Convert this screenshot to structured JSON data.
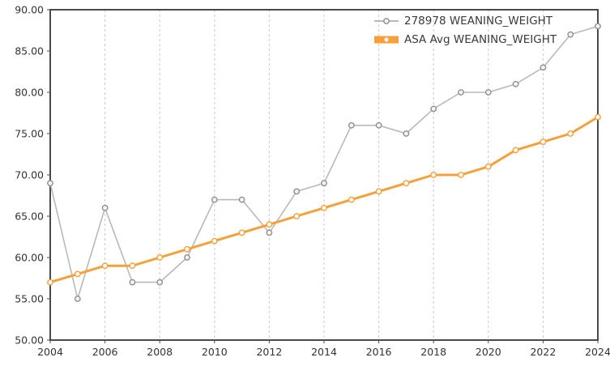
{
  "chart_data": {
    "type": "line",
    "title": "",
    "xlabel": "",
    "ylabel": "",
    "x": [
      2004,
      2005,
      2006,
      2007,
      2008,
      2009,
      2010,
      2011,
      2012,
      2013,
      2014,
      2015,
      2016,
      2017,
      2018,
      2019,
      2020,
      2021,
      2022,
      2023,
      2024
    ],
    "series": [
      {
        "name": "278978 WEANING_WEIGHT",
        "color": "#b9b9b9",
        "marker_stroke": "#8f8f8f",
        "marker_fill": "#f4f4f4",
        "line_width": 1.6,
        "legend_symbol_width": 2,
        "values": [
          69,
          55,
          66,
          57,
          57,
          60,
          67,
          67,
          63,
          68,
          69,
          76,
          76,
          75,
          78,
          80,
          80,
          81,
          83,
          87,
          88
        ]
      },
      {
        "name": "ASA Avg WEANING_WEIGHT",
        "color": "#f6a03c",
        "marker_stroke": "#f6a03c",
        "marker_fill": "#ffffff",
        "line_width": 3,
        "legend_symbol_width": 9,
        "values": [
          57,
          58,
          59,
          59,
          60,
          61,
          62,
          63,
          64,
          65,
          66,
          67,
          68,
          69,
          70,
          70,
          71,
          73,
          74,
          75,
          77
        ]
      }
    ],
    "ylim": [
      50,
      90
    ],
    "ytick_step": 5,
    "ytick_labels": [
      "50.00",
      "55.00",
      "60.00",
      "65.00",
      "70.00",
      "75.00",
      "80.00",
      "85.00",
      "90.00"
    ],
    "xticks": [
      2004,
      2006,
      2008,
      2010,
      2012,
      2014,
      2016,
      2018,
      2020,
      2022,
      2024
    ],
    "grid": "vertical-dashed",
    "legend_position": "top-right",
    "axis_color": "#4a4a4a",
    "grid_color": "#c9c9c9",
    "label_color": "#333333",
    "legend_text_color": "#3a3a3a"
  }
}
